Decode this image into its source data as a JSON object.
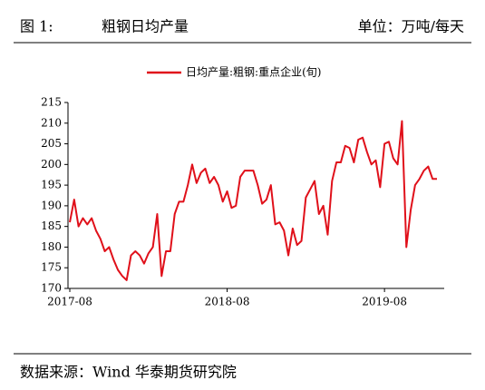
{
  "header": {
    "figure": "图 1:",
    "title": "粗钢日均产量",
    "unit": "单位：万吨/每天"
  },
  "chart_data": {
    "type": "line",
    "categories": [
      "2017-08",
      null,
      null,
      null,
      null,
      null,
      null,
      null,
      null,
      null,
      null,
      null,
      null,
      null,
      null,
      null,
      null,
      null,
      null,
      null,
      null,
      null,
      null,
      null,
      null,
      null,
      null,
      null,
      null,
      null,
      null,
      null,
      null,
      null,
      null,
      null,
      "2018-08",
      null,
      null,
      null,
      null,
      null,
      null,
      null,
      null,
      null,
      null,
      null,
      null,
      null,
      null,
      null,
      null,
      null,
      null,
      null,
      null,
      null,
      null,
      null,
      null,
      null,
      null,
      null,
      null,
      null,
      null,
      null,
      null,
      null,
      null,
      null,
      "2019-08",
      null,
      null,
      null,
      null,
      null,
      null,
      null,
      null,
      null,
      null,
      null,
      null
    ],
    "series": [
      {
        "name": "日均产量:粗钢:重点企业(旬)",
        "color": "#e0101a",
        "values": [
          186,
          191.5,
          185,
          187,
          185.5,
          187,
          184,
          182,
          179,
          180,
          177,
          174.5,
          173,
          172,
          178,
          179,
          178,
          176,
          178.5,
          180,
          188,
          173,
          179,
          179,
          188,
          191,
          191,
          195,
          200,
          195.5,
          198,
          199,
          195.5,
          197,
          195,
          191,
          193.5,
          189.5,
          190,
          197,
          198.5,
          198.5,
          198.5,
          195,
          190.5,
          191.5,
          195,
          185.5,
          186,
          184,
          178,
          184.5,
          180.5,
          181.5,
          192,
          194,
          196,
          188,
          190,
          183,
          196,
          200.5,
          200.5,
          204.5,
          204,
          200.5,
          206,
          206.5,
          203,
          200,
          201,
          194.5,
          205,
          205.5,
          201.5,
          200,
          210.5,
          180,
          189,
          195,
          196.5,
          198.5,
          199.5,
          196.5,
          196.5
        ]
      }
    ],
    "ylim": [
      170,
      215
    ],
    "yticks": [
      170,
      175,
      180,
      185,
      190,
      195,
      200,
      205,
      210,
      215
    ]
  },
  "footer": {
    "source": "数据来源：Wind 华泰期货研究院"
  }
}
